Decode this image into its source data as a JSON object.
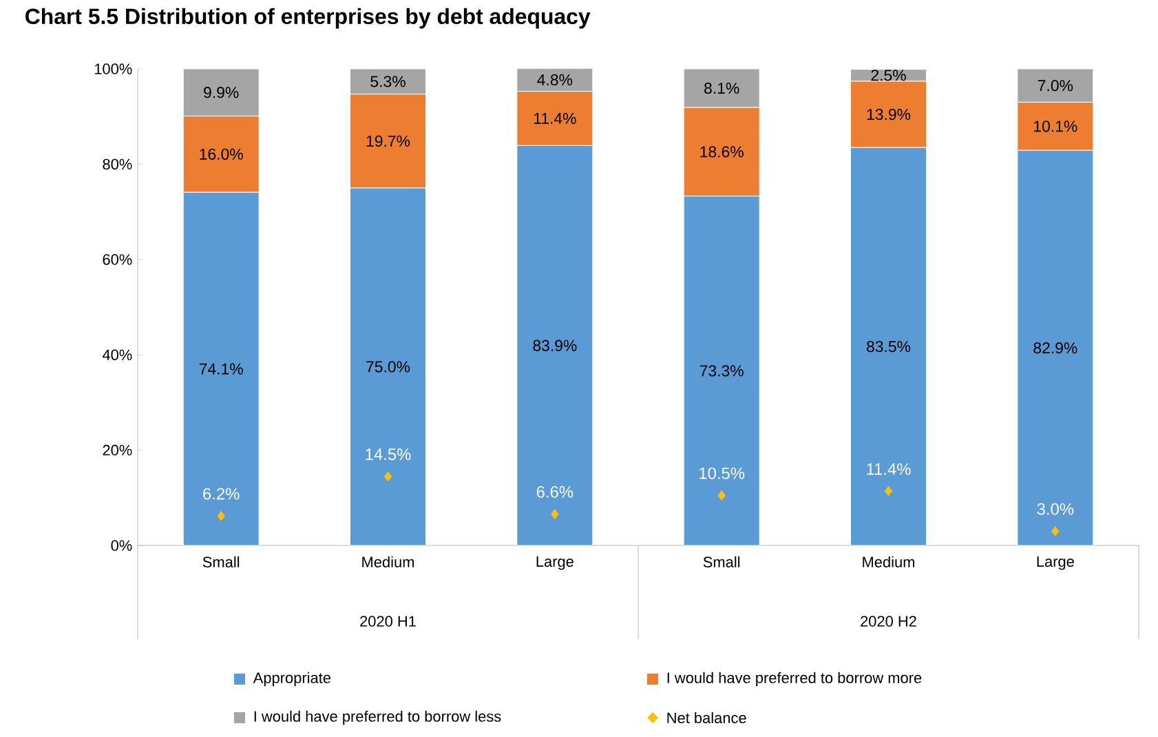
{
  "chart_data": {
    "type": "bar",
    "title": "Chart 5.5 Distribution of enterprises by debt adequacy",
    "stacked": true,
    "legend": "bottom",
    "categories": [
      "Small",
      "Medium",
      "Large",
      "Small",
      "Medium",
      "Large"
    ],
    "annotations": [
      "2020 H1",
      "2020 H2"
    ],
    "ylim": [
      0,
      100
    ],
    "yticks": [
      {
        "value": 0,
        "label": "0%"
      },
      {
        "value": 20,
        "label": "20%"
      },
      {
        "value": 40,
        "label": "40%"
      },
      {
        "value": 60,
        "label": "60%"
      },
      {
        "value": 80,
        "label": "80%"
      },
      {
        "value": 100,
        "label": "100%"
      }
    ],
    "series": [
      {
        "name": "Appropriate",
        "color": "#5b9bd5",
        "values": [
          74.1,
          75.0,
          83.9,
          73.3,
          83.5,
          82.9
        ],
        "value_labels": [
          "74.1%",
          "75.0%",
          "83.9%",
          "73.3%",
          "83.5%",
          "82.9%"
        ]
      },
      {
        "name": "I would have preferred to borrow more",
        "color": "#ed7d31",
        "values": [
          16.0,
          19.7,
          11.4,
          18.6,
          13.9,
          10.1
        ],
        "value_labels": [
          "16.0%",
          "19.7%",
          "11.4%",
          "18.6%",
          "13.9%",
          "10.1%"
        ]
      },
      {
        "name": "I would have preferred to borrow less",
        "color": "#a5a5a5",
        "values": [
          9.9,
          5.3,
          4.8,
          8.1,
          2.5,
          7.0
        ],
        "value_labels": [
          "9.9%",
          "5.3%",
          "4.8%",
          "8.1%",
          "2.5%",
          "7.0%"
        ]
      },
      {
        "name": "Net balance",
        "type": "scatter",
        "marker": "diamond",
        "color": "#ffc000",
        "values": [
          6.2,
          14.5,
          6.6,
          10.5,
          11.4,
          3.0
        ],
        "value_labels": [
          "6.2%",
          "14.5%",
          "6.6%",
          "10.5%",
          "11.4%",
          "3.0%"
        ]
      }
    ]
  }
}
